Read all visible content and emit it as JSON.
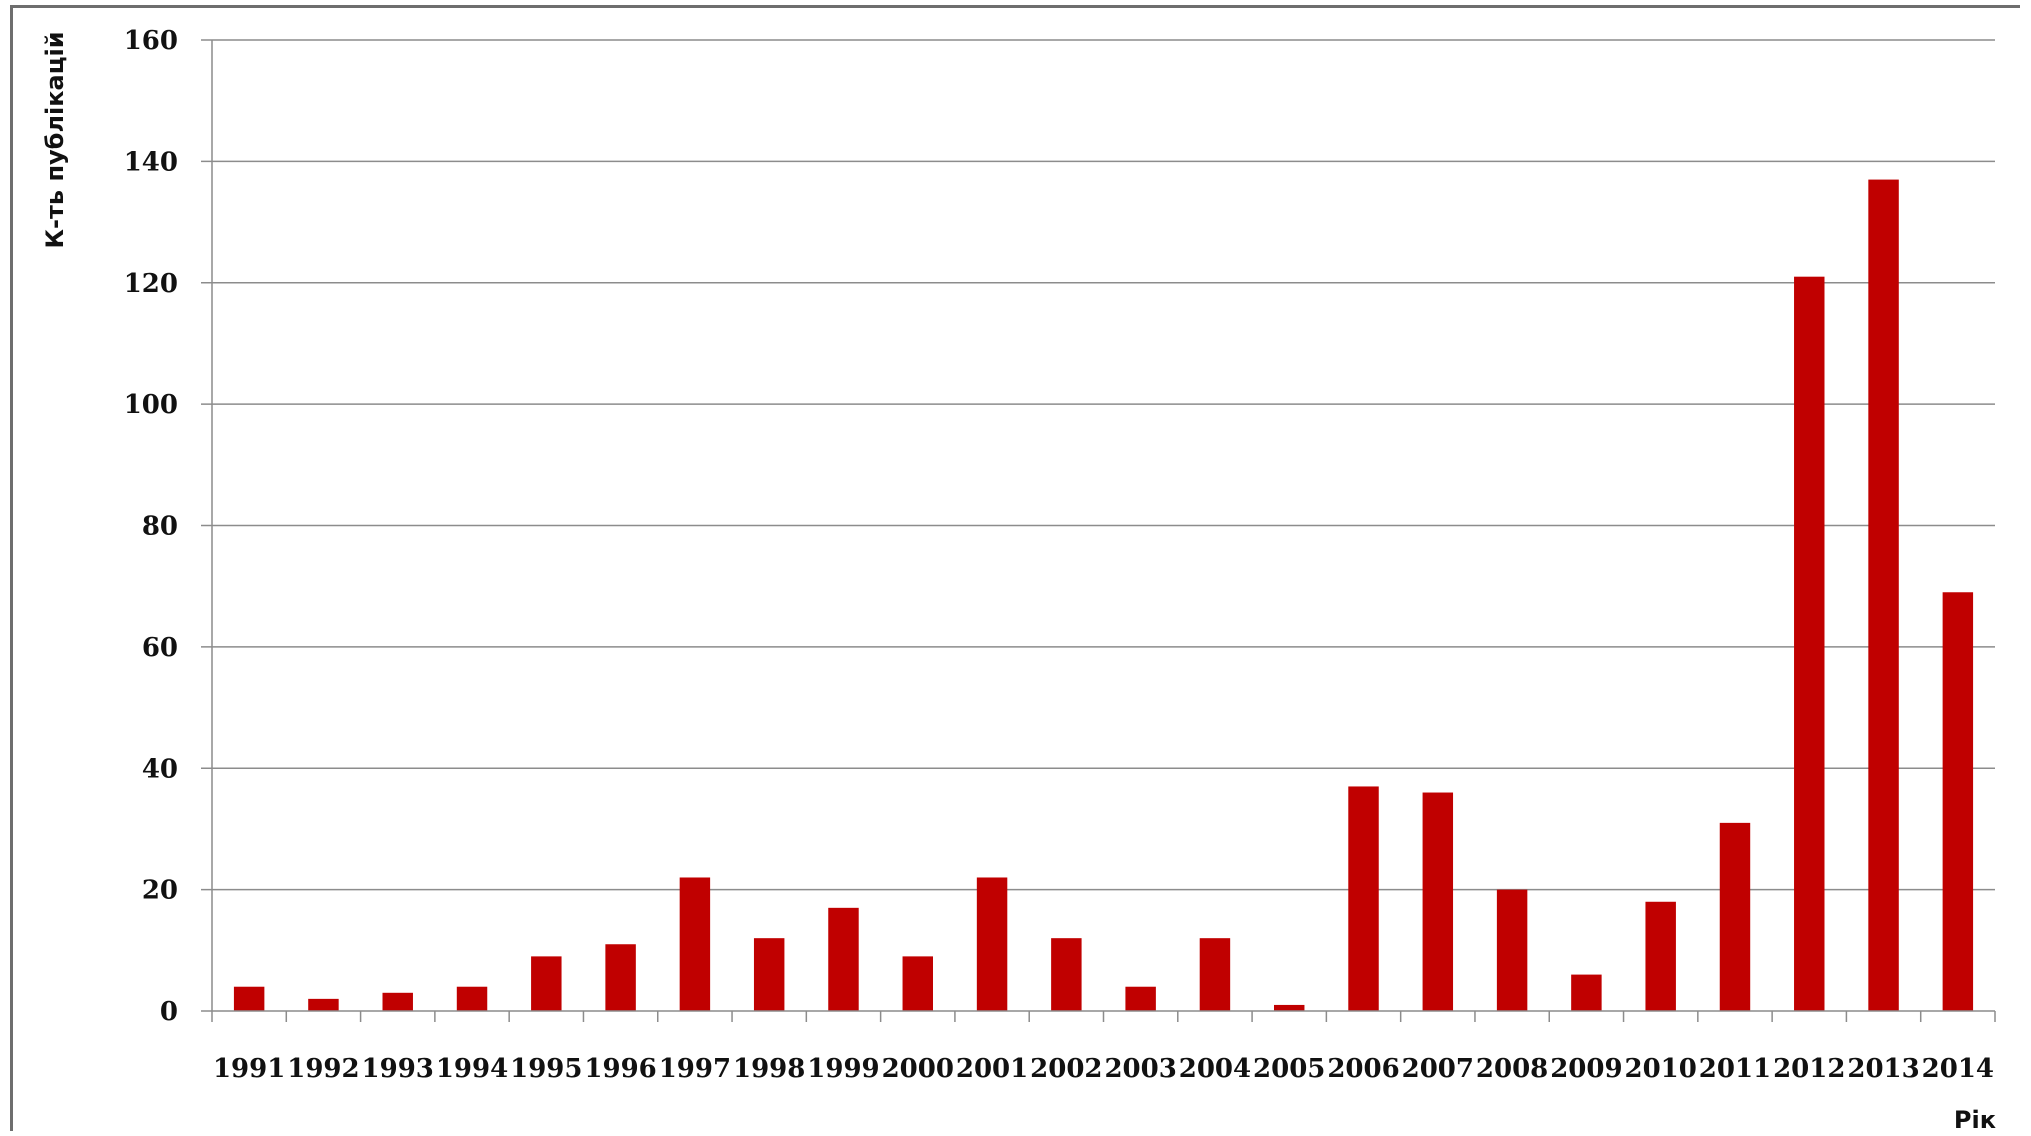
{
  "chart_data": {
    "type": "bar",
    "categories": [
      "1991",
      "1992",
      "1993",
      "1994",
      "1995",
      "1996",
      "1997",
      "1998",
      "1999",
      "2000",
      "2001",
      "2002",
      "2003",
      "2004",
      "2005",
      "2006",
      "2007",
      "2008",
      "2009",
      "2010",
      "2011",
      "2012",
      "2013",
      "2014"
    ],
    "values": [
      4,
      2,
      3,
      4,
      9,
      11,
      22,
      12,
      17,
      9,
      22,
      12,
      4,
      12,
      1,
      37,
      36,
      20,
      6,
      18,
      31,
      121,
      137,
      69
    ],
    "title": "",
    "xlabel": "Рік",
    "ylabel": "К-ть публікацій",
    "ylim": [
      0,
      160
    ],
    "yticks": [
      "0",
      "20",
      "40",
      "60",
      "80",
      "100",
      "120",
      "140",
      "160"
    ],
    "grid": true,
    "legend": "none",
    "bar_color": "#c00000",
    "grid_color": "#8c8c8c"
  }
}
